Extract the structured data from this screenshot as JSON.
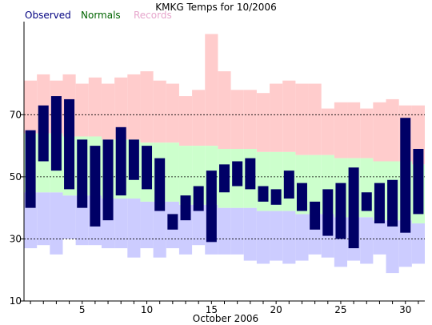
{
  "chart_data": {
    "type": "bar",
    "title": "KMKG Temps for 10/2006",
    "xlabel": "October 2006",
    "ylabel": "",
    "ylim": [
      10,
      100
    ],
    "xlim": [
      0.5,
      31.5
    ],
    "y_ticks": [
      10,
      30,
      50,
      70
    ],
    "x_ticks": [
      5,
      10,
      15,
      20,
      25,
      30
    ],
    "grid": "dashed horizontal lines at 30, 50, 70",
    "legend": [
      "Observed",
      "Normals",
      "Records"
    ],
    "legend_position": "top-left",
    "colors": {
      "observed": "#000066",
      "observed_text": "#000080",
      "normals": "#ccffcc",
      "normals_text": "#006400",
      "records": "#ffcccc",
      "records_text": "#e6a6cc",
      "below_normal": "#ccccff"
    },
    "days": [
      1,
      2,
      3,
      4,
      5,
      6,
      7,
      8,
      9,
      10,
      11,
      12,
      13,
      14,
      15,
      16,
      17,
      18,
      19,
      20,
      21,
      22,
      23,
      24,
      25,
      26,
      27,
      28,
      29,
      30,
      31
    ],
    "record_high": [
      81,
      83,
      81,
      83,
      80,
      82,
      80,
      82,
      83,
      84,
      81,
      80,
      76,
      78,
      96,
      84,
      78,
      78,
      77,
      80,
      81,
      80,
      80,
      72,
      74,
      74,
      72,
      74,
      75,
      73,
      73
    ],
    "normal_high": [
      64,
      64,
      64,
      63,
      63,
      63,
      62,
      62,
      62,
      61,
      61,
      61,
      60,
      60,
      60,
      59,
      59,
      59,
      58,
      58,
      58,
      57,
      57,
      57,
      56,
      56,
      56,
      55,
      55,
      55,
      54
    ],
    "normal_low": [
      45,
      45,
      45,
      44,
      44,
      44,
      43,
      43,
      43,
      42,
      42,
      42,
      41,
      41,
      41,
      40,
      40,
      40,
      39,
      39,
      39,
      38,
      38,
      38,
      37,
      37,
      37,
      36,
      36,
      36,
      35
    ],
    "record_low": [
      27,
      28,
      25,
      30,
      28,
      28,
      27,
      27,
      24,
      27,
      24,
      27,
      25,
      28,
      25,
      25,
      25,
      23,
      22,
      23,
      22,
      23,
      25,
      24,
      21,
      23,
      22,
      25,
      19,
      21,
      22
    ],
    "observed_high": [
      65,
      73,
      76,
      75,
      62,
      60,
      62,
      66,
      62,
      60,
      56,
      38,
      44,
      47,
      52,
      54,
      55,
      56,
      47,
      46,
      52,
      48,
      42,
      46,
      48,
      53,
      45,
      48,
      49,
      69,
      59
    ],
    "observed_low": [
      40,
      55,
      52,
      46,
      40,
      34,
      36,
      44,
      49,
      46,
      39,
      33,
      36,
      39,
      29,
      45,
      47,
      46,
      42,
      41,
      43,
      39,
      33,
      31,
      30,
      27,
      39,
      35,
      34,
      32,
      38
    ]
  }
}
